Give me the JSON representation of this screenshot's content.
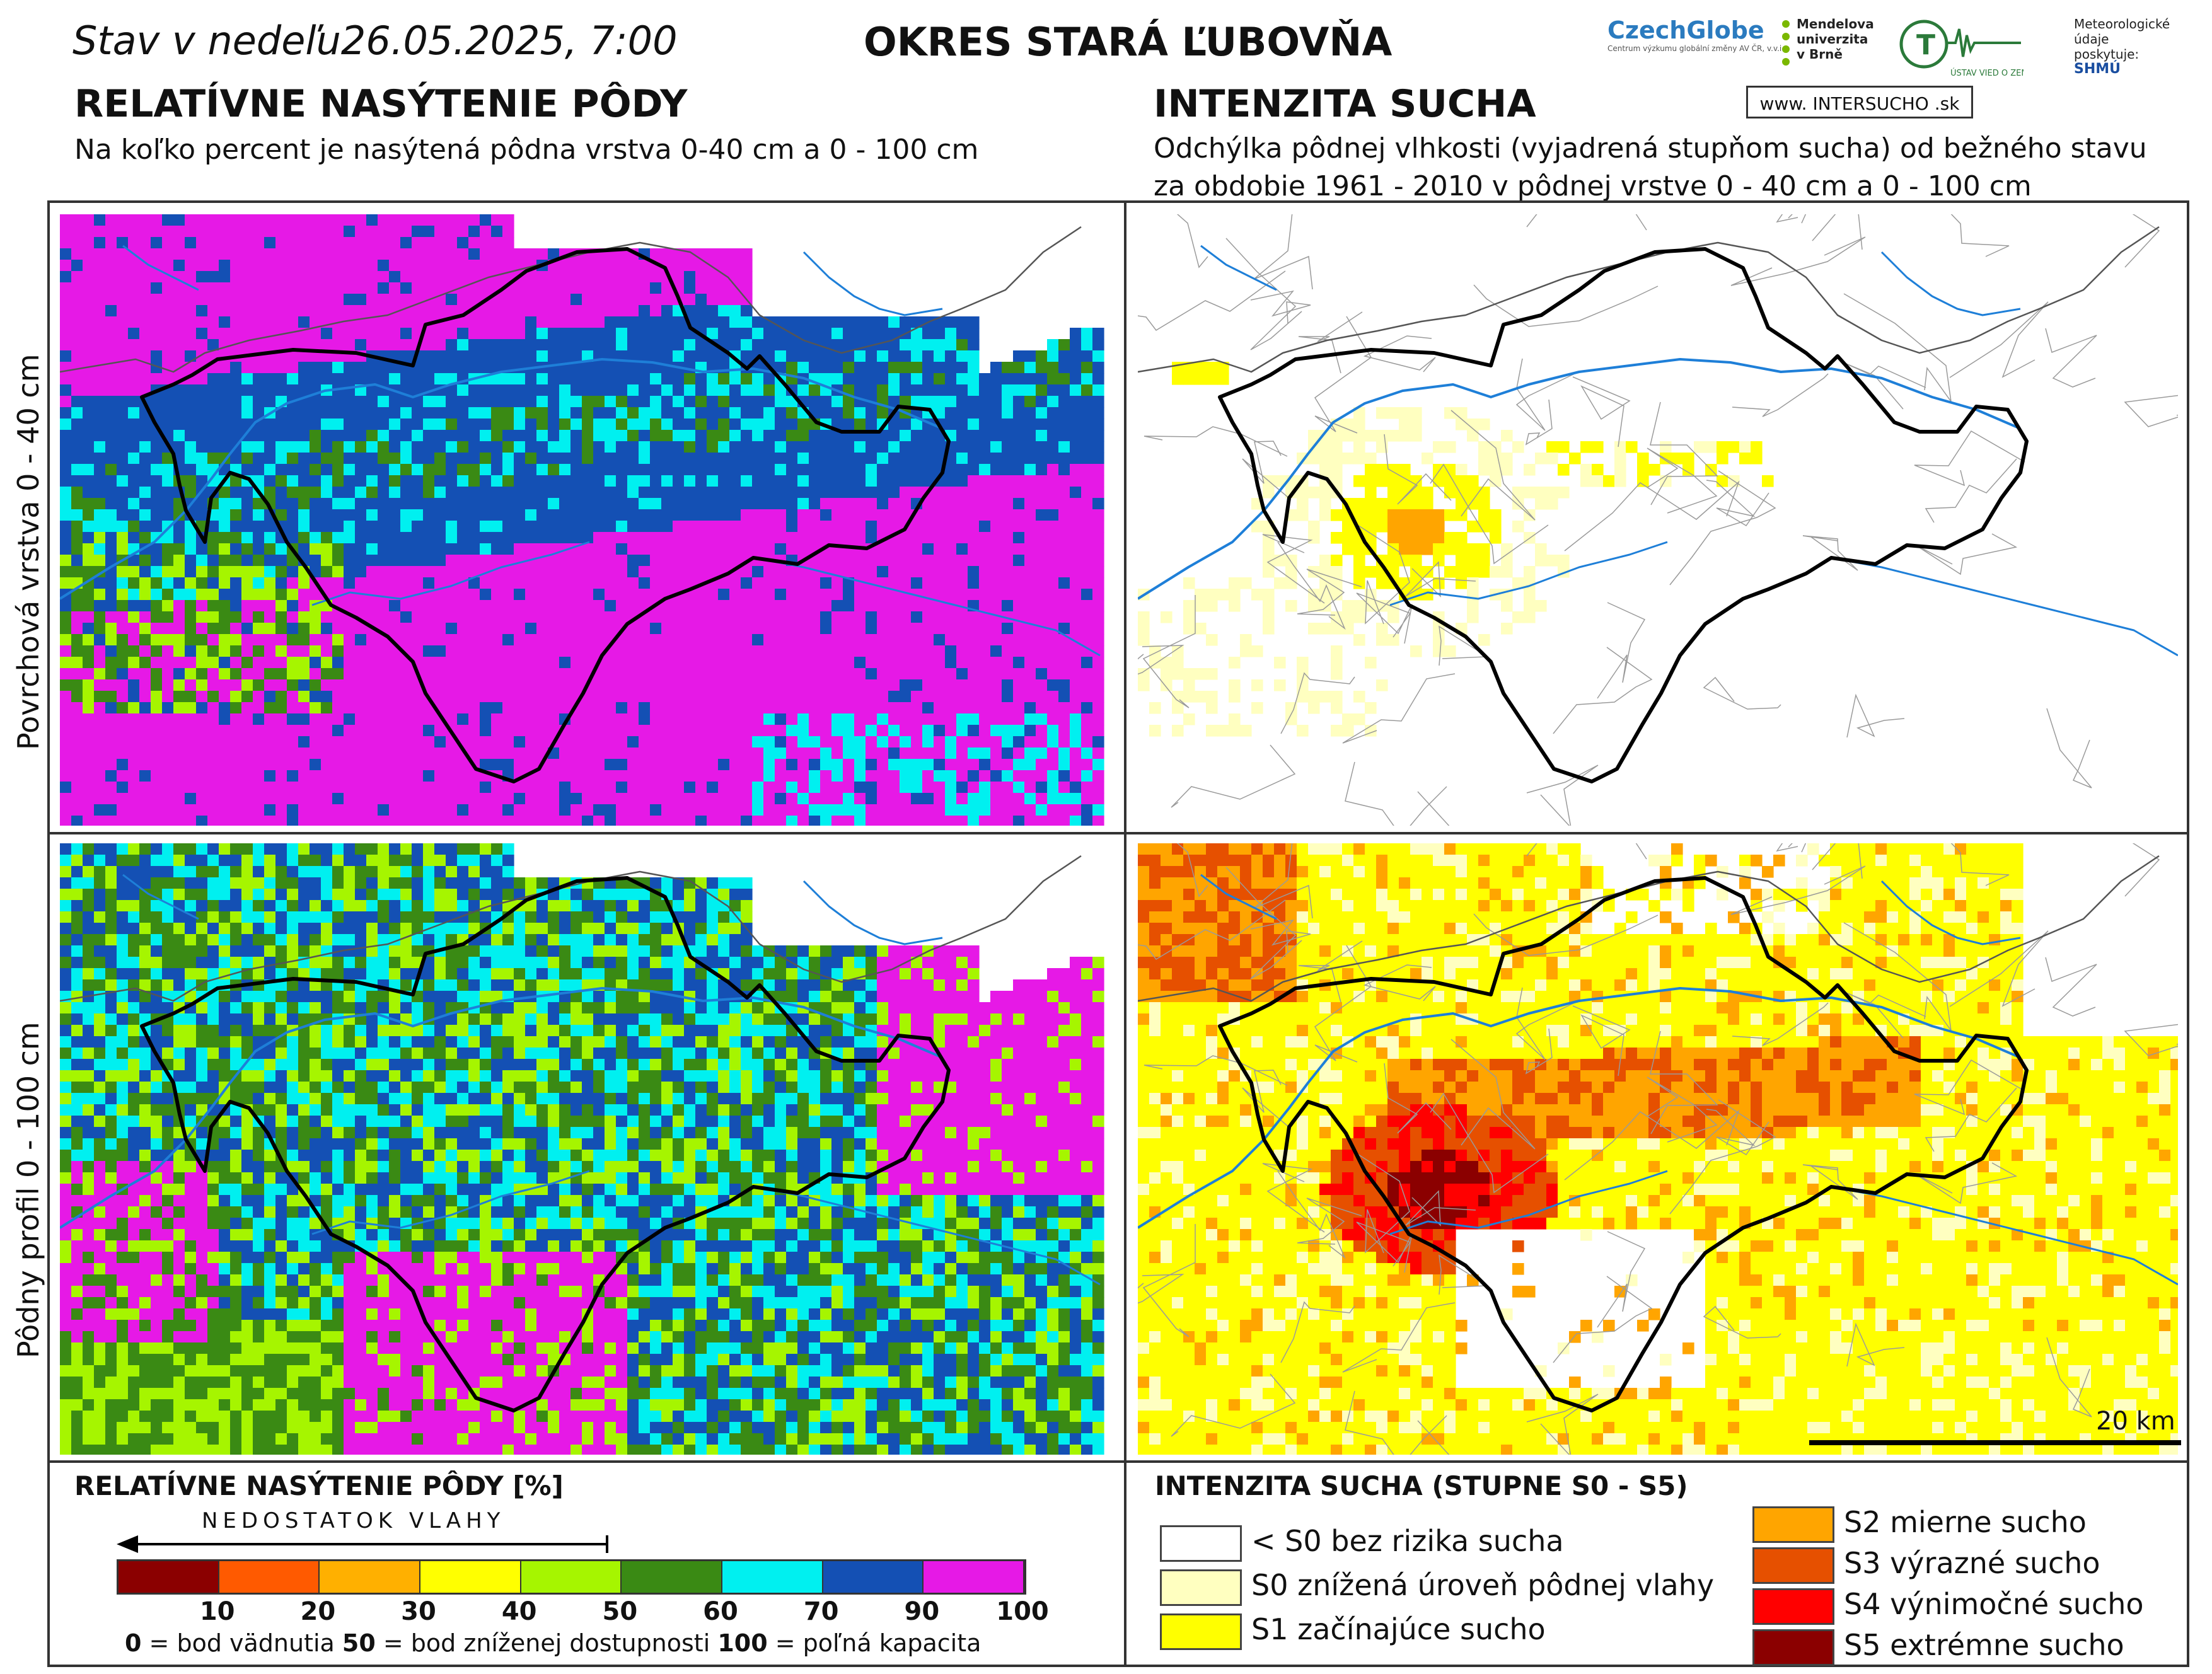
{
  "header": {
    "stav": "Stav v nedeľu",
    "datetime": "26.05.2025, 7:00",
    "okres": "OKRES  STARÁ ĽUBOVŇA"
  },
  "logos": {
    "czechglobe": "CzechGlobe",
    "czechglobe_sub": "Centrum výzkumu globální změny AV ČR, v.v.i.",
    "mendelu": "Mendelova univerzita v Brně",
    "uvz": "ÚSTAV VIED O ZEMI",
    "meteo": "Meteorologické údaje poskytuje:",
    "shmu": "SHMÚ",
    "intersucho": "www. INTERSUCHO .sk"
  },
  "left_heading": {
    "title": "RELATÍVNE NASÝTENIE PÔDY",
    "subtitle": "Na koľko percent je nasýtená pôdna vrstva 0-40 cm a 0 - 100 cm"
  },
  "right_heading": {
    "title": "INTENZITA SUCHA",
    "subtitle": "Odchýlka pôdnej vlhkosti (vyjadrená stupňom sucha) od bežného stavu za obdobie 1961 - 2010 v pôdnej vrstve 0 - 40 cm a 0 - 100 cm"
  },
  "row_labels": {
    "top": "Povrchová vrstva 0 - 40 cm",
    "bottom": "Pôdny profil 0 - 100 cm"
  },
  "scalebar": {
    "label": "20 km"
  },
  "legend_saturation": {
    "title": "RELATÍVNE NASÝTENIE PÔDY [%]",
    "arrow_label": "NEDOSTATOK VLAHY",
    "bins": [
      {
        "color": "#8b0000"
      },
      {
        "color": "#ff5a00"
      },
      {
        "color": "#ffb000"
      },
      {
        "color": "#ffff00"
      },
      {
        "color": "#a6f500"
      },
      {
        "color": "#3a8a14"
      },
      {
        "color": "#00f0f0"
      },
      {
        "color": "#1450b4"
      },
      {
        "color": "#e619e6"
      }
    ],
    "ticks": [
      "10",
      "20",
      "30",
      "40",
      "50",
      "60",
      "70",
      "90",
      "100"
    ],
    "note": {
      "v0": "0",
      "t0": " = bod vädnutia   ",
      "v50": "50",
      "t50": " = bod zníženej dostupnosti   ",
      "v100": "100",
      "t100": " = poľná kapacita"
    }
  },
  "legend_drought": {
    "title": "INTENZITA SUCHA (STUPNE S0 - S5)",
    "classes": [
      {
        "label": "< S0 bez rizika sucha",
        "color": "#ffffff"
      },
      {
        "label": "S0 znížená úroveň pôdnej vlahy",
        "color": "#ffffc0"
      },
      {
        "label": "S1 začínajúce sucho",
        "color": "#ffff00"
      },
      {
        "label": "S2 mierne sucho",
        "color": "#ffa500"
      },
      {
        "label": "S3 výrazné sucho",
        "color": "#e65000"
      },
      {
        "label": "S4 výnimočné sucho",
        "color": "#ff0000"
      },
      {
        "label": "S5 extrémne sucho",
        "color": "#8b0000"
      }
    ]
  }
}
